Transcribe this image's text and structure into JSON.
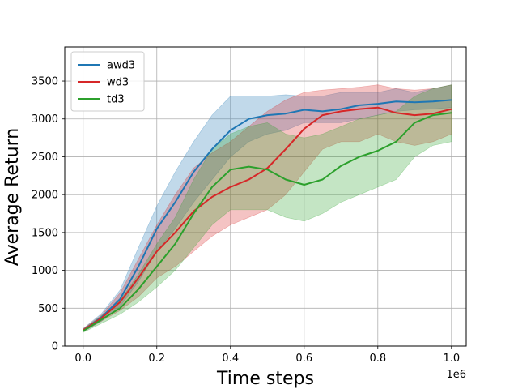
{
  "chart_data": {
    "type": "line",
    "title": "",
    "xlabel": "Time steps",
    "ylabel": "Average Return",
    "x_offset_label": "1e6",
    "xlim": [
      -0.05,
      1.04
    ],
    "ylim": [
      0,
      3950
    ],
    "x_ticks": [
      0.0,
      0.2,
      0.4,
      0.6,
      0.8,
      1.0
    ],
    "x_tick_labels": [
      "0.0",
      "0.2",
      "0.4",
      "0.6",
      "0.8",
      "1.0"
    ],
    "y_ticks": [
      0,
      500,
      1000,
      1500,
      2000,
      2500,
      3000,
      3500
    ],
    "y_tick_labels": [
      "0",
      "500",
      "1000",
      "1500",
      "2000",
      "2500",
      "3000",
      "3500"
    ],
    "grid": true,
    "legend_position": "top-left",
    "x": [
      0.0,
      0.05,
      0.1,
      0.15,
      0.2,
      0.25,
      0.3,
      0.35,
      0.4,
      0.45,
      0.5,
      0.55,
      0.6,
      0.65,
      0.7,
      0.75,
      0.8,
      0.85,
      0.9,
      0.95,
      1.0
    ],
    "series": [
      {
        "name": "awd3",
        "color": "#1f77b4",
        "values": [
          210,
          380,
          620,
          1050,
          1550,
          1900,
          2300,
          2600,
          2850,
          3000,
          3050,
          3070,
          3120,
          3100,
          3130,
          3180,
          3200,
          3230,
          3220,
          3230,
          3250
        ],
        "lower": [
          190,
          330,
          520,
          850,
          1250,
          1550,
          1900,
          2200,
          2500,
          2700,
          2800,
          2850,
          2950,
          2950,
          2950,
          3000,
          3050,
          3100,
          3120,
          3130,
          3150
        ],
        "upper": [
          230,
          430,
          740,
          1300,
          1850,
          2300,
          2700,
          3050,
          3300,
          3300,
          3300,
          3320,
          3300,
          3300,
          3350,
          3350,
          3350,
          3400,
          3350,
          3400,
          3450
        ]
      },
      {
        "name": "wd3",
        "color": "#d62728",
        "values": [
          210,
          370,
          580,
          900,
          1250,
          1500,
          1780,
          1970,
          2100,
          2200,
          2350,
          2600,
          2870,
          3050,
          3100,
          3130,
          3150,
          3080,
          3050,
          3070,
          3130
        ],
        "lower": [
          190,
          330,
          470,
          650,
          900,
          1050,
          1250,
          1450,
          1600,
          1700,
          1800,
          2000,
          2300,
          2600,
          2700,
          2700,
          2800,
          2700,
          2650,
          2700,
          2800
        ],
        "upper": [
          230,
          410,
          700,
          1150,
          1600,
          2000,
          2350,
          2550,
          2700,
          2900,
          3100,
          3250,
          3350,
          3380,
          3400,
          3420,
          3450,
          3400,
          3380,
          3400,
          3450
        ]
      },
      {
        "name": "td3",
        "color": "#2ca02c",
        "values": [
          200,
          350,
          500,
          750,
          1050,
          1350,
          1750,
          2100,
          2330,
          2370,
          2330,
          2200,
          2130,
          2200,
          2380,
          2500,
          2580,
          2700,
          2950,
          3050,
          3080
        ],
        "lower": [
          180,
          300,
          420,
          580,
          780,
          1000,
          1300,
          1600,
          1800,
          1800,
          1800,
          1700,
          1650,
          1750,
          1900,
          2000,
          2100,
          2200,
          2500,
          2650,
          2700
        ],
        "upper": [
          220,
          400,
          600,
          950,
          1350,
          1700,
          2200,
          2600,
          2800,
          2900,
          2950,
          2800,
          2750,
          2800,
          2900,
          3000,
          3050,
          3100,
          3300,
          3400,
          3450
        ]
      }
    ]
  }
}
